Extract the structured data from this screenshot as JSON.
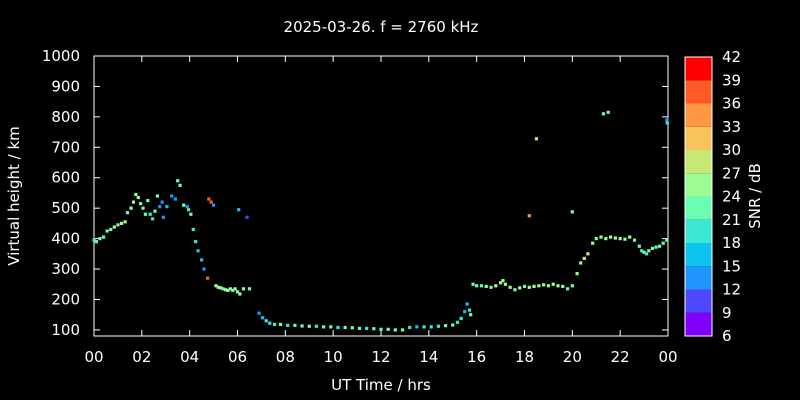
{
  "chart_data": {
    "type": "scatter",
    "title": "2025-03-26. f = 2760 kHz",
    "xlabel": "UT Time / hrs",
    "ylabel": "Virtual height / km",
    "xlim": [
      0,
      24
    ],
    "ylim": [
      80,
      1000
    ],
    "xticks": [
      "00",
      "02",
      "04",
      "06",
      "08",
      "10",
      "12",
      "14",
      "16",
      "18",
      "20",
      "22",
      "00"
    ],
    "yticks": [
      100,
      200,
      300,
      400,
      500,
      600,
      700,
      800,
      900,
      1000
    ],
    "grid": false,
    "colorbar": {
      "label": "SNR / dB",
      "min": 6,
      "max": 42,
      "ticks": [
        6,
        9,
        12,
        15,
        18,
        21,
        24,
        27,
        30,
        33,
        36,
        39,
        42
      ],
      "colors": [
        "#8000ff",
        "#4f48ff",
        "#1f96ff",
        "#0dc4ee",
        "#3ce8d3",
        "#6cfcb4",
        "#9afc92",
        "#c8e874",
        "#f6c45a",
        "#ff9640",
        "#ff5a26",
        "#ff0000"
      ]
    },
    "points": [
      [
        0.0,
        395,
        20
      ],
      [
        0.1,
        390,
        21
      ],
      [
        0.25,
        400,
        21
      ],
      [
        0.4,
        405,
        22
      ],
      [
        0.55,
        425,
        21
      ],
      [
        0.7,
        430,
        22
      ],
      [
        0.85,
        438,
        24
      ],
      [
        1.0,
        445,
        23
      ],
      [
        1.15,
        450,
        24
      ],
      [
        1.3,
        455,
        24
      ],
      [
        1.4,
        485,
        23
      ],
      [
        1.55,
        500,
        24
      ],
      [
        1.65,
        520,
        24
      ],
      [
        1.75,
        545,
        25
      ],
      [
        1.85,
        535,
        24
      ],
      [
        1.95,
        515,
        23
      ],
      [
        2.05,
        500,
        22
      ],
      [
        2.15,
        480,
        21
      ],
      [
        2.25,
        525,
        23
      ],
      [
        2.35,
        480,
        20
      ],
      [
        2.45,
        465,
        19
      ],
      [
        2.55,
        490,
        21
      ],
      [
        2.65,
        540,
        22
      ],
      [
        2.75,
        505,
        14
      ],
      [
        2.85,
        520,
        12
      ],
      [
        2.9,
        470,
        13
      ],
      [
        3.05,
        505,
        16
      ],
      [
        3.25,
        540,
        14
      ],
      [
        3.4,
        530,
        12
      ],
      [
        3.5,
        590,
        21
      ],
      [
        3.6,
        575,
        22
      ],
      [
        3.75,
        510,
        22
      ],
      [
        3.9,
        505,
        14
      ],
      [
        3.95,
        495,
        20
      ],
      [
        4.05,
        480,
        21
      ],
      [
        4.15,
        430,
        19
      ],
      [
        4.25,
        390,
        18
      ],
      [
        4.35,
        360,
        17
      ],
      [
        4.5,
        330,
        16
      ],
      [
        4.6,
        300,
        14
      ],
      [
        4.75,
        270,
        37
      ],
      [
        4.8,
        530,
        36
      ],
      [
        4.9,
        520,
        37
      ],
      [
        5.0,
        510,
        13
      ],
      [
        5.1,
        245,
        24
      ],
      [
        5.2,
        240,
        25
      ],
      [
        5.3,
        238,
        24
      ],
      [
        5.4,
        235,
        23
      ],
      [
        5.5,
        232,
        24
      ],
      [
        5.6,
        230,
        25
      ],
      [
        5.7,
        235,
        24
      ],
      [
        5.8,
        230,
        23
      ],
      [
        5.9,
        235,
        24
      ],
      [
        6.0,
        225,
        23
      ],
      [
        6.1,
        218,
        24
      ],
      [
        6.25,
        235,
        24
      ],
      [
        6.4,
        470,
        11
      ],
      [
        6.5,
        235,
        23
      ],
      [
        6.05,
        495,
        15
      ],
      [
        6.9,
        155,
        14
      ],
      [
        7.05,
        140,
        17
      ],
      [
        7.2,
        130,
        18
      ],
      [
        7.35,
        122,
        19
      ],
      [
        7.55,
        118,
        20
      ],
      [
        7.8,
        118,
        21
      ],
      [
        8.1,
        115,
        20
      ],
      [
        8.4,
        115,
        21
      ],
      [
        8.7,
        113,
        22
      ],
      [
        9.0,
        112,
        21
      ],
      [
        9.3,
        112,
        20
      ],
      [
        9.6,
        110,
        21
      ],
      [
        9.9,
        110,
        22
      ],
      [
        10.2,
        108,
        20
      ],
      [
        10.5,
        108,
        21
      ],
      [
        10.8,
        107,
        22
      ],
      [
        11.1,
        105,
        21
      ],
      [
        11.4,
        105,
        20
      ],
      [
        11.7,
        104,
        21
      ],
      [
        12.0,
        102,
        22
      ],
      [
        12.3,
        102,
        21
      ],
      [
        12.6,
        100,
        22
      ],
      [
        12.9,
        100,
        21
      ],
      [
        13.2,
        108,
        19
      ],
      [
        13.5,
        110,
        17
      ],
      [
        13.8,
        110,
        18
      ],
      [
        14.1,
        110,
        19
      ],
      [
        14.4,
        112,
        20
      ],
      [
        14.7,
        114,
        21
      ],
      [
        15.0,
        116,
        22
      ],
      [
        15.2,
        125,
        20
      ],
      [
        15.35,
        138,
        18
      ],
      [
        15.5,
        160,
        17
      ],
      [
        15.6,
        185,
        16
      ],
      [
        15.7,
        165,
        20
      ],
      [
        15.75,
        150,
        21
      ],
      [
        15.85,
        250,
        21
      ],
      [
        16.0,
        245,
        22
      ],
      [
        16.2,
        245,
        23
      ],
      [
        16.4,
        243,
        24
      ],
      [
        16.6,
        240,
        23
      ],
      [
        16.8,
        245,
        24
      ],
      [
        17.0,
        255,
        25
      ],
      [
        17.1,
        262,
        26
      ],
      [
        17.2,
        250,
        25
      ],
      [
        17.4,
        240,
        24
      ],
      [
        17.6,
        232,
        23
      ],
      [
        17.8,
        238,
        24
      ],
      [
        18.0,
        243,
        23
      ],
      [
        18.2,
        240,
        24
      ],
      [
        18.2,
        475,
        33
      ],
      [
        18.4,
        243,
        25
      ],
      [
        18.5,
        728,
        27
      ],
      [
        18.6,
        245,
        24
      ],
      [
        18.8,
        248,
        25
      ],
      [
        19.0,
        245,
        26
      ],
      [
        19.2,
        250,
        24
      ],
      [
        19.4,
        245,
        25
      ],
      [
        19.6,
        243,
        24
      ],
      [
        19.8,
        235,
        23
      ],
      [
        20.0,
        245,
        22
      ],
      [
        20.0,
        488,
        21
      ],
      [
        20.2,
        285,
        24
      ],
      [
        20.35,
        320,
        26
      ],
      [
        20.5,
        335,
        28
      ],
      [
        20.65,
        350,
        27
      ],
      [
        20.85,
        385,
        24
      ],
      [
        21.0,
        400,
        23
      ],
      [
        21.2,
        405,
        24
      ],
      [
        21.3,
        810,
        23
      ],
      [
        21.4,
        400,
        25
      ],
      [
        21.5,
        815,
        22
      ],
      [
        21.6,
        405,
        24
      ],
      [
        21.8,
        402,
        25
      ],
      [
        22.0,
        400,
        24
      ],
      [
        22.2,
        398,
        25
      ],
      [
        22.4,
        405,
        24
      ],
      [
        22.6,
        395,
        23
      ],
      [
        22.8,
        375,
        22
      ],
      [
        22.9,
        360,
        20
      ],
      [
        23.0,
        355,
        21
      ],
      [
        23.1,
        350,
        19
      ],
      [
        23.2,
        360,
        21
      ],
      [
        23.35,
        368,
        22
      ],
      [
        23.5,
        372,
        21
      ],
      [
        23.65,
        375,
        22
      ],
      [
        23.8,
        385,
        23
      ],
      [
        23.95,
        395,
        23
      ],
      [
        23.95,
        790,
        14
      ],
      [
        23.97,
        780,
        20
      ]
    ]
  }
}
